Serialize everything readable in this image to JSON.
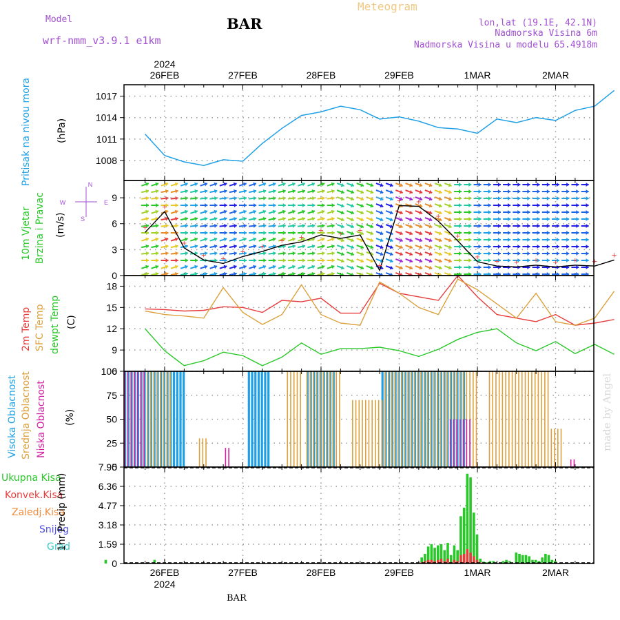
{
  "header": {
    "model_label": "Model",
    "model_name": "wrf-nmm_v3.9.1 e1km",
    "chart_title": "Meteogram",
    "station": "BAR",
    "location": "lon,lat (19.1E, 42.1N)",
    "elevation": "Nadmorska Visina 6m",
    "model_elevation": "Nadmorska Visina u modelu 65.4918m",
    "footer_station": "BAR",
    "watermark": "made by Angel"
  },
  "colors": {
    "pressure": "#1ea0e6",
    "temp2m": "#e63c3c",
    "sfc_temp": "#dca03c",
    "dewpoint": "#28c828",
    "cloud_high": "#1ea0e6",
    "cloud_mid": "#dca03c",
    "cloud_low": "#d020a0",
    "precip_total": "#28c828",
    "precip_conv": "#e63c3c",
    "precip_frz": "#f08c3c",
    "precip_snow": "#5050e6",
    "precip_hail": "#3cc8c8",
    "wind_label": "#28c828",
    "compass": "#a050d0"
  },
  "time_axis": {
    "top_year": "2024",
    "bottom_year": "2024",
    "days": [
      "26FEB",
      "27FEB",
      "28FEB",
      "29FEB",
      "1MAR",
      "2MAR"
    ]
  },
  "chart_data": [
    {
      "type": "line",
      "id": "pressure",
      "ylabel_name": "Pritisak na nivou mora",
      "unit": "(hPa)",
      "yticks": [
        "1008",
        "1011",
        "1014",
        "1017"
      ],
      "ylim": [
        1005.2,
        1018.6
      ],
      "x_hours": [
        0,
        6,
        12,
        18,
        24,
        30,
        36,
        42,
        48,
        54,
        60,
        66,
        72,
        78,
        84,
        90,
        96,
        102,
        108,
        114,
        120,
        126,
        132,
        138,
        144
      ],
      "values": [
        1011.7,
        1008.7,
        1007.8,
        1007.3,
        1008.1,
        1007.9,
        1010.4,
        1012.5,
        1014.3,
        1014.8,
        1015.6,
        1015.1,
        1013.8,
        1014.1,
        1013.5,
        1012.6,
        1012.4,
        1011.8,
        1013.8,
        1013.3,
        1014.0,
        1013.6,
        1015.0,
        1015.6,
        1017.8
      ]
    },
    {
      "type": "line",
      "id": "wind",
      "ylabel_name": "10m Vjetar",
      "ylabel_name2": "Brzina i Pravac",
      "unit": "(m/s)",
      "yticks": [
        "0",
        "3",
        "6",
        "9"
      ],
      "ylim": [
        0,
        11
      ],
      "compass": {
        "n": "N",
        "s": "S",
        "e": "E",
        "w": "W"
      },
      "x_hours": [
        0,
        6,
        12,
        18,
        24,
        30,
        36,
        42,
        48,
        54,
        60,
        66,
        72,
        78,
        84,
        90,
        96,
        102,
        108,
        114,
        120,
        126,
        132,
        138,
        144
      ],
      "values": [
        5.0,
        7.4,
        3.2,
        1.8,
        1.4,
        2.2,
        2.8,
        3.5,
        3.9,
        4.7,
        4.3,
        4.7,
        0.6,
        8.1,
        8.0,
        6.3,
        4.0,
        1.6,
        1.1,
        1.0,
        1.2,
        1.0,
        1.2,
        1.1,
        1.8
      ]
    },
    {
      "type": "line",
      "id": "temperature",
      "series_names": [
        "2m Temp",
        "SFC Temp",
        "dewpt Temp"
      ],
      "unit": "(C)",
      "yticks": [
        "6",
        "9",
        "12",
        "15",
        "18"
      ],
      "ylim": [
        6,
        19.5
      ],
      "x_hours": [
        0,
        6,
        12,
        18,
        24,
        30,
        36,
        42,
        48,
        54,
        60,
        66,
        72,
        78,
        84,
        90,
        96,
        102,
        108,
        114,
        120,
        126,
        132,
        138,
        144
      ],
      "series": [
        {
          "values": [
            14.8,
            14.7,
            14.5,
            14.6,
            15.1,
            15.0,
            14.3,
            16.0,
            15.8,
            16.3,
            14.2,
            14.2,
            18.4,
            17.0,
            16.5,
            16.0,
            19.5,
            16.5,
            14.0,
            13.5,
            13.0,
            14.0,
            12.5,
            12.8,
            13.3
          ]
        },
        {
          "values": [
            14.5,
            14.0,
            13.8,
            13.5,
            17.8,
            14.3,
            12.6,
            14.0,
            18.2,
            14.0,
            12.8,
            12.5,
            18.6,
            17.0,
            15.0,
            14.0,
            19.0,
            17.5,
            15.5,
            13.5,
            17.0,
            13.0,
            12.5,
            13.5,
            17.3
          ]
        },
        {
          "values": [
            12.0,
            8.9,
            6.8,
            7.5,
            8.7,
            8.2,
            6.8,
            8.0,
            10.0,
            8.4,
            9.2,
            9.2,
            9.4,
            8.9,
            8.1,
            9.1,
            10.5,
            11.5,
            12.0,
            10.0,
            8.9,
            10.2,
            8.5,
            9.8,
            8.4
          ]
        }
      ]
    },
    {
      "type": "bar",
      "id": "cloud",
      "series_names": [
        "Visoka Oblacnost",
        "Srednja Oblacnost",
        "Niska Oblacnost"
      ],
      "unit": "(%)",
      "yticks": [
        "0",
        "25",
        "50",
        "75",
        "100"
      ],
      "ylim": [
        0,
        100
      ],
      "series": [
        {
          "name": "high",
          "segments": [
            [
              2,
              24,
              100
            ],
            [
              44,
              50,
              100
            ],
            [
              62,
              70,
              100
            ],
            [
              85,
              110,
              100
            ]
          ]
        },
        {
          "name": "mid",
          "segments": [
            [
              0,
              20,
              100
            ],
            [
              29,
              31,
              30
            ],
            [
              56,
              60,
              100
            ],
            [
              62,
              72,
              100
            ],
            [
              76,
              85,
              70
            ],
            [
              86,
              114,
              100
            ],
            [
              118,
              136,
              100
            ],
            [
              137,
              140,
              40
            ]
          ]
        },
        {
          "name": "low",
          "segments": [
            [
              2,
              12,
              100
            ],
            [
              37,
              38,
              20
            ],
            [
              106,
              112,
              50
            ],
            [
              143,
              144,
              8
            ]
          ]
        }
      ]
    },
    {
      "type": "bar",
      "id": "precip",
      "series_names": [
        "Ukupna Kisa",
        "Konvek.Kisa",
        "Zaledj.Kisa",
        "Snijeg",
        "Grad"
      ],
      "unit": "1hr Precip (mm)",
      "yticks": [
        "0",
        "1.59",
        "3.18",
        "4.77",
        "6.36",
        "7.95"
      ],
      "ylim": [
        0,
        7.95
      ],
      "hours": [
        0,
        15,
        97,
        98,
        99,
        100,
        101,
        102,
        103,
        104,
        105,
        106,
        107,
        108,
        109,
        110,
        111,
        112,
        113,
        114,
        115,
        116,
        117,
        118,
        119,
        122,
        123,
        124,
        126,
        127,
        128,
        129,
        130,
        131,
        132,
        133,
        134,
        135,
        136,
        137,
        138
      ],
      "total": [
        0.3,
        0.3,
        0.5,
        0.8,
        1.4,
        1.6,
        1.3,
        1.5,
        1.6,
        1.1,
        1.7,
        0.7,
        1.5,
        1.1,
        3.9,
        4.6,
        7.4,
        7.1,
        4.2,
        2.4,
        0.4,
        0.15,
        0.1,
        0.2,
        0.2,
        0.2,
        0.3,
        0.2,
        0.9,
        0.8,
        0.7,
        0.7,
        0.6,
        0.3,
        0.3,
        0.2,
        0.5,
        0.8,
        0.7,
        0.3,
        0.2
      ],
      "convective": [
        0,
        0,
        0.1,
        0.2,
        0.3,
        0.3,
        0.2,
        0.3,
        0.4,
        0.2,
        0.4,
        0.1,
        0.3,
        0.2,
        0.7,
        0.8,
        1.2,
        0.9,
        0.6,
        0.3,
        0.1,
        0,
        0,
        0,
        0,
        0,
        0,
        0,
        0,
        0,
        0,
        0,
        0,
        0,
        0,
        0,
        0,
        0,
        0,
        0,
        0
      ]
    }
  ]
}
